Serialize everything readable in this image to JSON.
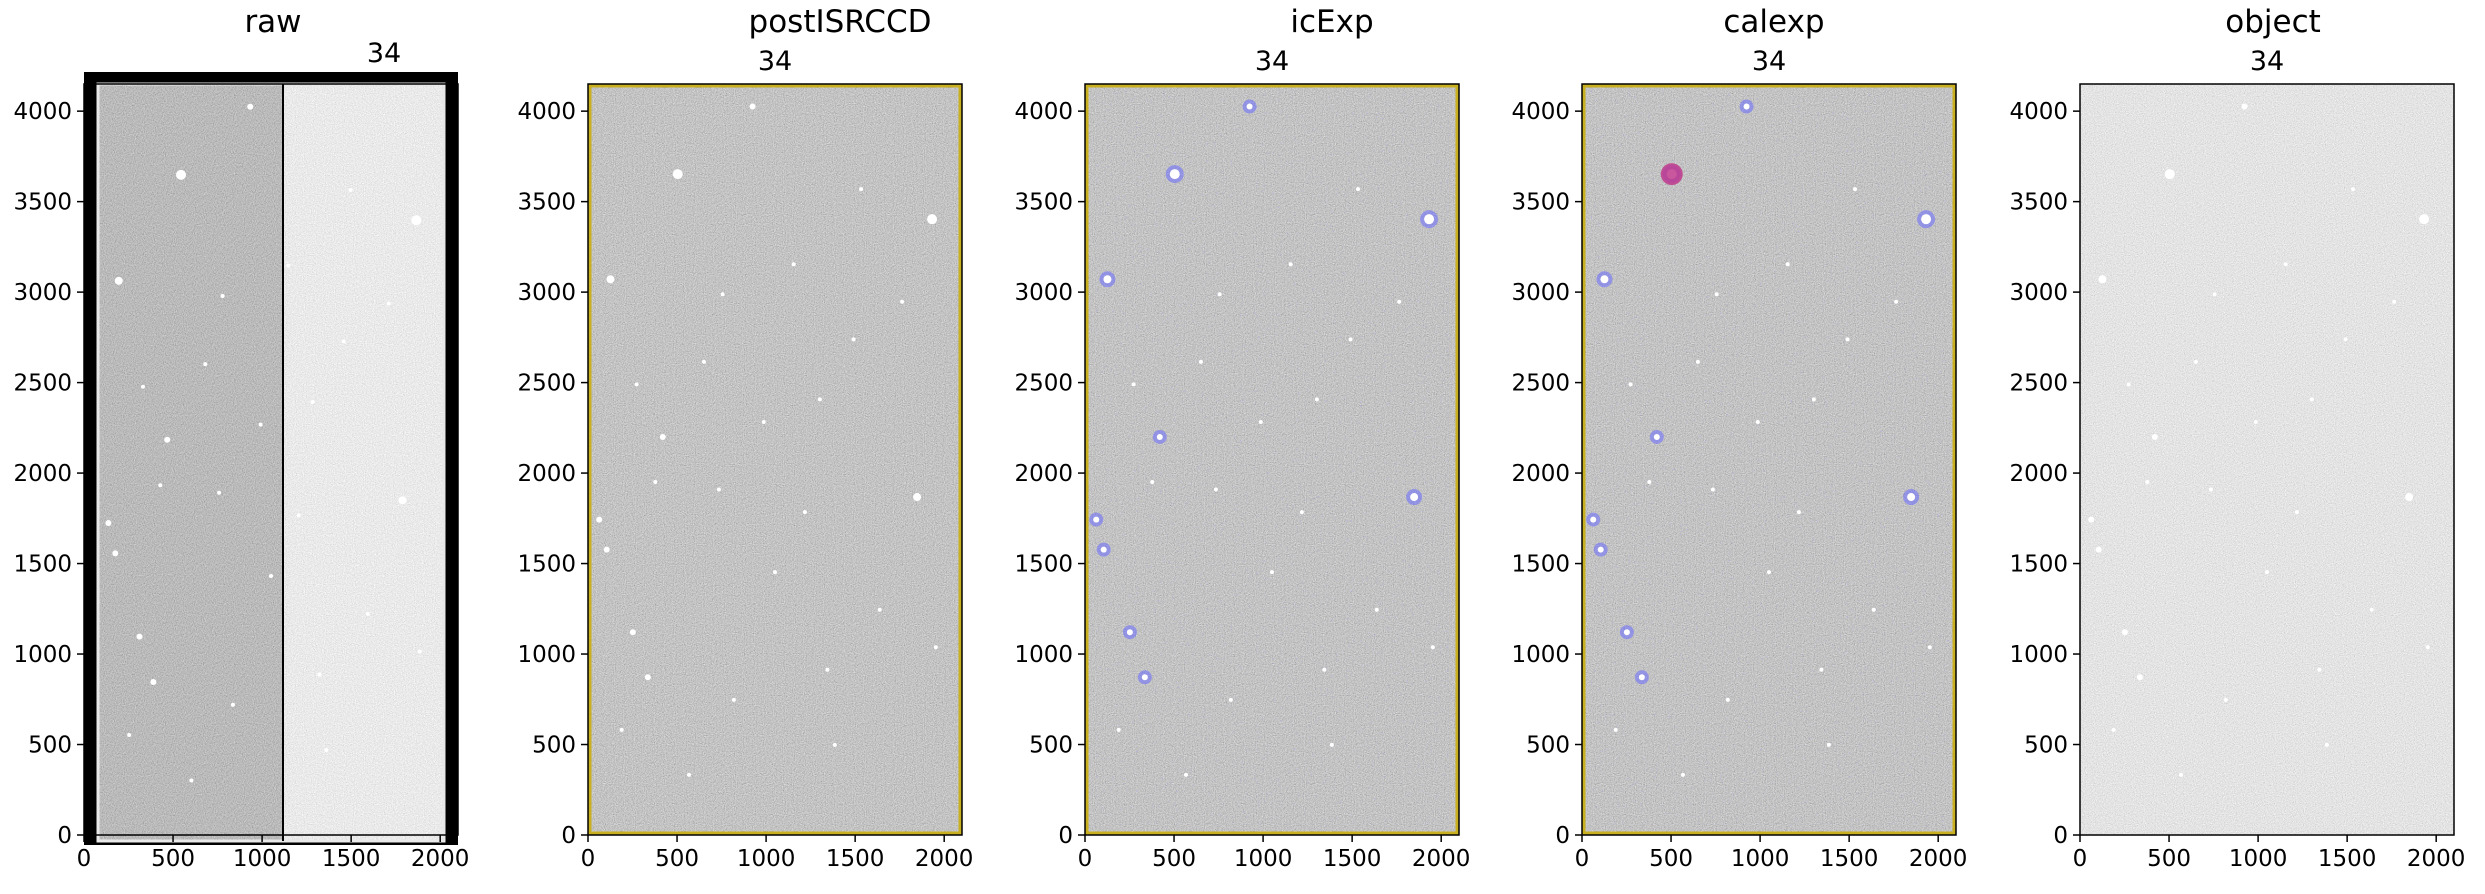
{
  "figure": {
    "panels": [
      {
        "title": "raw",
        "detector_label": "34",
        "x_ticks": [
          "0",
          "500",
          "1000",
          "1500",
          "2000"
        ],
        "y_ticks": [
          "0",
          "500",
          "1000",
          "1500",
          "2000",
          "2500",
          "3000",
          "3500",
          "4000"
        ],
        "image_style": "raw-two-amp",
        "overlay_colors": [],
        "stars": "standard"
      },
      {
        "title": "postISRCCD",
        "detector_label": "34",
        "x_ticks": [
          "0",
          "500",
          "1000",
          "1500",
          "2000"
        ],
        "y_ticks": [
          "0",
          "500",
          "1000",
          "1500",
          "2000",
          "2500",
          "3000",
          "3500",
          "4000"
        ],
        "image_style": "dark-noise",
        "overlay_colors": [
          "#c9b020"
        ],
        "stars": "standard"
      },
      {
        "title": "icExp",
        "detector_label": "34",
        "x_ticks": [
          "0",
          "500",
          "1000",
          "1500",
          "2000"
        ],
        "y_ticks": [
          "0",
          "500",
          "1000",
          "1500",
          "2000",
          "2500",
          "3000",
          "3500",
          "4000"
        ],
        "image_style": "dark-noise",
        "overlay_colors": [
          "#c9b020",
          "#5a5aff"
        ],
        "stars": "standard"
      },
      {
        "title": "calexp",
        "detector_label": "34",
        "x_ticks": [
          "0",
          "500",
          "1000",
          "1500",
          "2000"
        ],
        "y_ticks": [
          "0",
          "500",
          "1000",
          "1500",
          "2000",
          "2500",
          "3000",
          "3500",
          "4000"
        ],
        "image_style": "dark-noise",
        "overlay_colors": [
          "#c9b020",
          "#5a5aff",
          "#c03a8c"
        ],
        "stars": "standard"
      },
      {
        "title": "object",
        "detector_label": "34",
        "x_ticks": [
          "0",
          "500",
          "1000",
          "1500",
          "2000"
        ],
        "y_ticks": [
          "0",
          "500",
          "1000",
          "1500",
          "2000",
          "2500",
          "3000",
          "3500",
          "4000"
        ],
        "image_style": "grey-noise",
        "overlay_colors": [],
        "stars": "standard"
      }
    ]
  }
}
